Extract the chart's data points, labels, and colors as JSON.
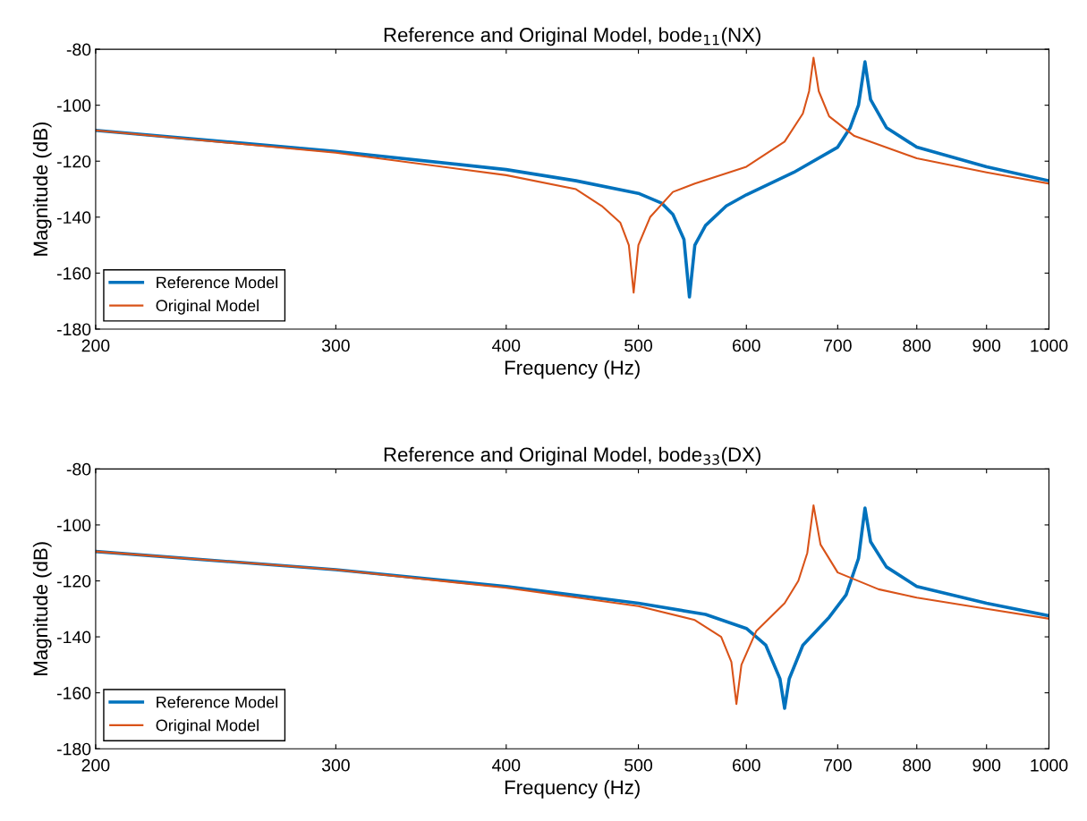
{
  "chart_data": [
    {
      "type": "line",
      "title": "Reference and Original Model, bode$_{11}$(NX)",
      "xlabel": "Frequency (Hz)",
      "ylabel": "Magnitude (dB)",
      "log": "x",
      "xlim": [
        200,
        1000
      ],
      "xticks": [
        200,
        300,
        400,
        500,
        600,
        700,
        800,
        900,
        1000
      ],
      "ylim": [
        -180,
        -80
      ],
      "yticks": [
        -180,
        -160,
        -140,
        -120,
        -100,
        -80
      ],
      "grid": false,
      "legend": "bottom left",
      "line_style": "solid",
      "marker": "none",
      "series": [
        {
          "name": "Reference Model",
          "color": "#0072bd",
          "x": [
            200,
            300,
            400,
            450,
            500,
            520,
            530,
            540,
            545,
            550,
            560,
            580,
            600,
            650,
            700,
            715,
            725,
            733,
            740,
            760,
            800,
            900,
            1000
          ],
          "values": [
            -109,
            -116.5,
            -123,
            -127,
            -131.5,
            -135,
            -139,
            -148,
            -168.5,
            -150,
            -143,
            -136,
            -132,
            -124,
            -115,
            -108,
            -100,
            -84.5,
            -98,
            -108,
            -115,
            -122,
            -127
          ]
        },
        {
          "name": "Original Model",
          "color": "#d95319",
          "x": [
            200,
            300,
            400,
            450,
            470,
            485,
            492,
            496,
            500,
            510,
            530,
            550,
            600,
            640,
            660,
            667,
            672,
            678,
            690,
            720,
            800,
            900,
            1000
          ],
          "values": [
            -109,
            -117,
            -125,
            -130,
            -136,
            -142,
            -150,
            -167,
            -150,
            -140,
            -131,
            -128,
            -122,
            -113,
            -103,
            -95,
            -83,
            -95,
            -104,
            -111,
            -119,
            -124,
            -128
          ]
        }
      ]
    },
    {
      "type": "line",
      "title": "Reference and Original Model, bode$_{33}$(DX)",
      "xlabel": "Frequency (Hz)",
      "ylabel": "Magnitude (dB)",
      "log": "x",
      "xlim": [
        200,
        1000
      ],
      "xticks": [
        200,
        300,
        400,
        500,
        600,
        700,
        800,
        900,
        1000
      ],
      "ylim": [
        -180,
        -80
      ],
      "yticks": [
        -180,
        -160,
        -140,
        -120,
        -100,
        -80
      ],
      "grid": false,
      "legend": "bottom left",
      "line_style": "solid",
      "marker": "none",
      "series": [
        {
          "name": "Reference Model",
          "color": "#0072bd",
          "x": [
            200,
            300,
            400,
            500,
            560,
            600,
            620,
            635,
            640,
            645,
            660,
            690,
            710,
            725,
            733,
            740,
            760,
            800,
            900,
            1000
          ],
          "values": [
            -109.5,
            -116,
            -122,
            -128,
            -132,
            -137,
            -143,
            -155,
            -165.5,
            -155,
            -143,
            -133,
            -125,
            -112,
            -94,
            -106,
            -115,
            -122,
            -128,
            -132.5
          ]
        },
        {
          "name": "Original Model",
          "color": "#d95319",
          "x": [
            200,
            300,
            400,
            500,
            550,
            575,
            585,
            590,
            595,
            610,
            640,
            655,
            665,
            672,
            680,
            700,
            750,
            800,
            900,
            1000
          ],
          "values": [
            -109.5,
            -116,
            -122.5,
            -129,
            -134,
            -140,
            -149,
            -164,
            -150,
            -138,
            -128,
            -120,
            -110,
            -93,
            -107,
            -117,
            -123,
            -126,
            -130,
            -133.5
          ]
        }
      ]
    }
  ]
}
